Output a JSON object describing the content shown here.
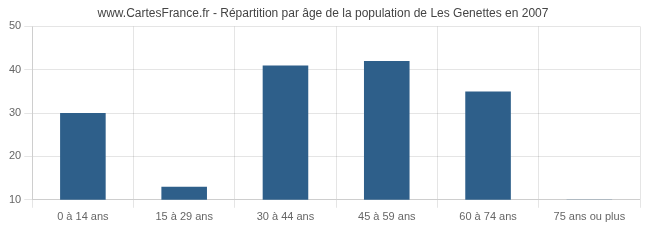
{
  "chart_data": {
    "type": "bar",
    "title": "www.CartesFrance.fr - Répartition par âge de la population de Les Genettes en 2007",
    "categories": [
      "0 à 14 ans",
      "15 à 29 ans",
      "30 à 44 ans",
      "45 à 59 ans",
      "60 à 74 ans",
      "75 ans ou plus"
    ],
    "values": [
      30,
      13,
      41,
      42,
      35,
      10
    ],
    "color": "#2E5F8A",
    "ylim": [
      10,
      50
    ],
    "yticks": [
      10,
      20,
      30,
      40,
      50
    ],
    "grid": true
  }
}
